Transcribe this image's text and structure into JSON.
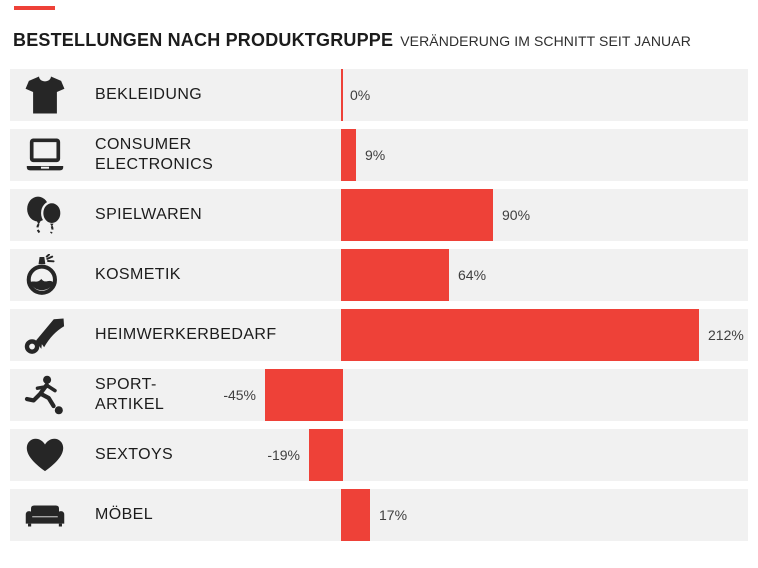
{
  "header": {
    "title": "BESTELLUNGEN NACH PRODUKTGRUPPE",
    "subtitle": "VERÄNDERUNG IM SCHNITT SEIT JANUAR"
  },
  "colors": {
    "bar": "#ee4138",
    "zero_line": "#ee4138",
    "row_background": "#f1f1f1",
    "accent_dash": "#ee4138",
    "title_text": "#1c1c1c",
    "category_text": "#1c1c1c",
    "value_text": "#3f3f3f",
    "icon": "#262626"
  },
  "chart_data": {
    "type": "bar",
    "orientation": "horizontal",
    "title": "BESTELLUNGEN NACH PRODUKTGRUPPE",
    "subtitle": "VERÄNDERUNG IM SCHNITT SEIT JANUAR",
    "unit": "%",
    "categories": [
      "BEKLEIDUNG",
      "CONSUMER ELECTRONICS",
      "SPIELWAREN",
      "KOSMETIK",
      "HEIMWERKERBEDARF",
      "SPORT-ARTIKEL",
      "SEXTOYS",
      "MÖBEL"
    ],
    "values": [
      0,
      9,
      90,
      64,
      212,
      -45,
      -19,
      17
    ],
    "value_labels": [
      "0%",
      "9%",
      "90%",
      "64%",
      "212%",
      "-45%",
      "-19%",
      "17%"
    ],
    "xlim": [
      -60,
      240
    ],
    "grid": false,
    "legend": false,
    "zero_axis_line": true
  },
  "rows": [
    {
      "icon": "tshirt-icon",
      "label_lines": [
        "BEKLEIDUNG"
      ],
      "value": 0,
      "value_label": "0%"
    },
    {
      "icon": "laptop-icon",
      "label_lines": [
        "CONSUMER",
        "ELECTRONICS"
      ],
      "value": 9,
      "value_label": "9%"
    },
    {
      "icon": "balloons-icon",
      "label_lines": [
        "SPIELWAREN"
      ],
      "value": 90,
      "value_label": "90%"
    },
    {
      "icon": "perfume-icon",
      "label_lines": [
        "KOSMETIK"
      ],
      "value": 64,
      "value_label": "64%"
    },
    {
      "icon": "saw-icon",
      "label_lines": [
        "HEIMWERKERBEDARF"
      ],
      "value": 212,
      "value_label": "212%"
    },
    {
      "icon": "footballer-icon",
      "label_lines": [
        "SPORT-",
        "ARTIKEL"
      ],
      "value": -45,
      "value_label": "-45%"
    },
    {
      "icon": "heart-icon",
      "label_lines": [
        "SEXTOYS"
      ],
      "value": -19,
      "value_label": "-19%"
    },
    {
      "icon": "sofa-icon",
      "label_lines": [
        "MÖBEL"
      ],
      "value": 17,
      "value_label": "17%"
    }
  ]
}
